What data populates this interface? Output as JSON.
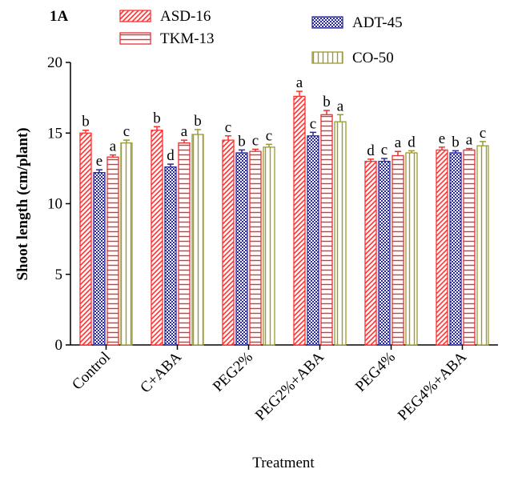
{
  "chart_data": {
    "type": "bar",
    "panel_label": "1A",
    "ylabel": "Shoot length (cm/plant)",
    "xlabel": "Treatment",
    "categories": [
      "Control",
      "C+ABA",
      "PEG2%",
      "PEG2%+ABA",
      "PEG4%",
      "PEG4%+ABA"
    ],
    "series": [
      {
        "name": "ASD-16",
        "color": "#ff3030",
        "pattern": "diagonal",
        "values": [
          15.0,
          15.2,
          14.5,
          17.6,
          13.0,
          13.8
        ],
        "errors": [
          0.2,
          0.25,
          0.3,
          0.35,
          0.15,
          0.2
        ],
        "annotations": [
          "b",
          "b",
          "c",
          "a",
          "d",
          "e"
        ]
      },
      {
        "name": "ADT-45",
        "color": "#2a2aa0",
        "pattern": "checker",
        "values": [
          12.2,
          12.6,
          13.6,
          14.8,
          13.0,
          13.6
        ],
        "errors": [
          0.2,
          0.2,
          0.2,
          0.25,
          0.2,
          0.15
        ],
        "annotations": [
          "e",
          "d",
          "b",
          "c",
          "c",
          "b"
        ]
      },
      {
        "name": "TKM-13",
        "color": "#e83030",
        "pattern": "horizontal",
        "values": [
          13.3,
          14.3,
          13.7,
          16.3,
          13.4,
          13.8
        ],
        "errors": [
          0.15,
          0.2,
          0.15,
          0.3,
          0.3,
          0.1
        ],
        "annotations": [
          "a",
          "a",
          "c",
          "b",
          "a",
          "a"
        ]
      },
      {
        "name": "CO-50",
        "color": "#9a9a30",
        "pattern": "vertical",
        "values": [
          14.3,
          14.9,
          14.0,
          15.8,
          13.6,
          14.1
        ],
        "errors": [
          0.2,
          0.35,
          0.2,
          0.5,
          0.15,
          0.3
        ],
        "annotations": [
          "c",
          "b",
          "c",
          "a",
          "d",
          "c"
        ]
      }
    ],
    "ylim": [
      0,
      20
    ],
    "yticks": [
      0,
      5,
      10,
      15,
      20
    ]
  }
}
